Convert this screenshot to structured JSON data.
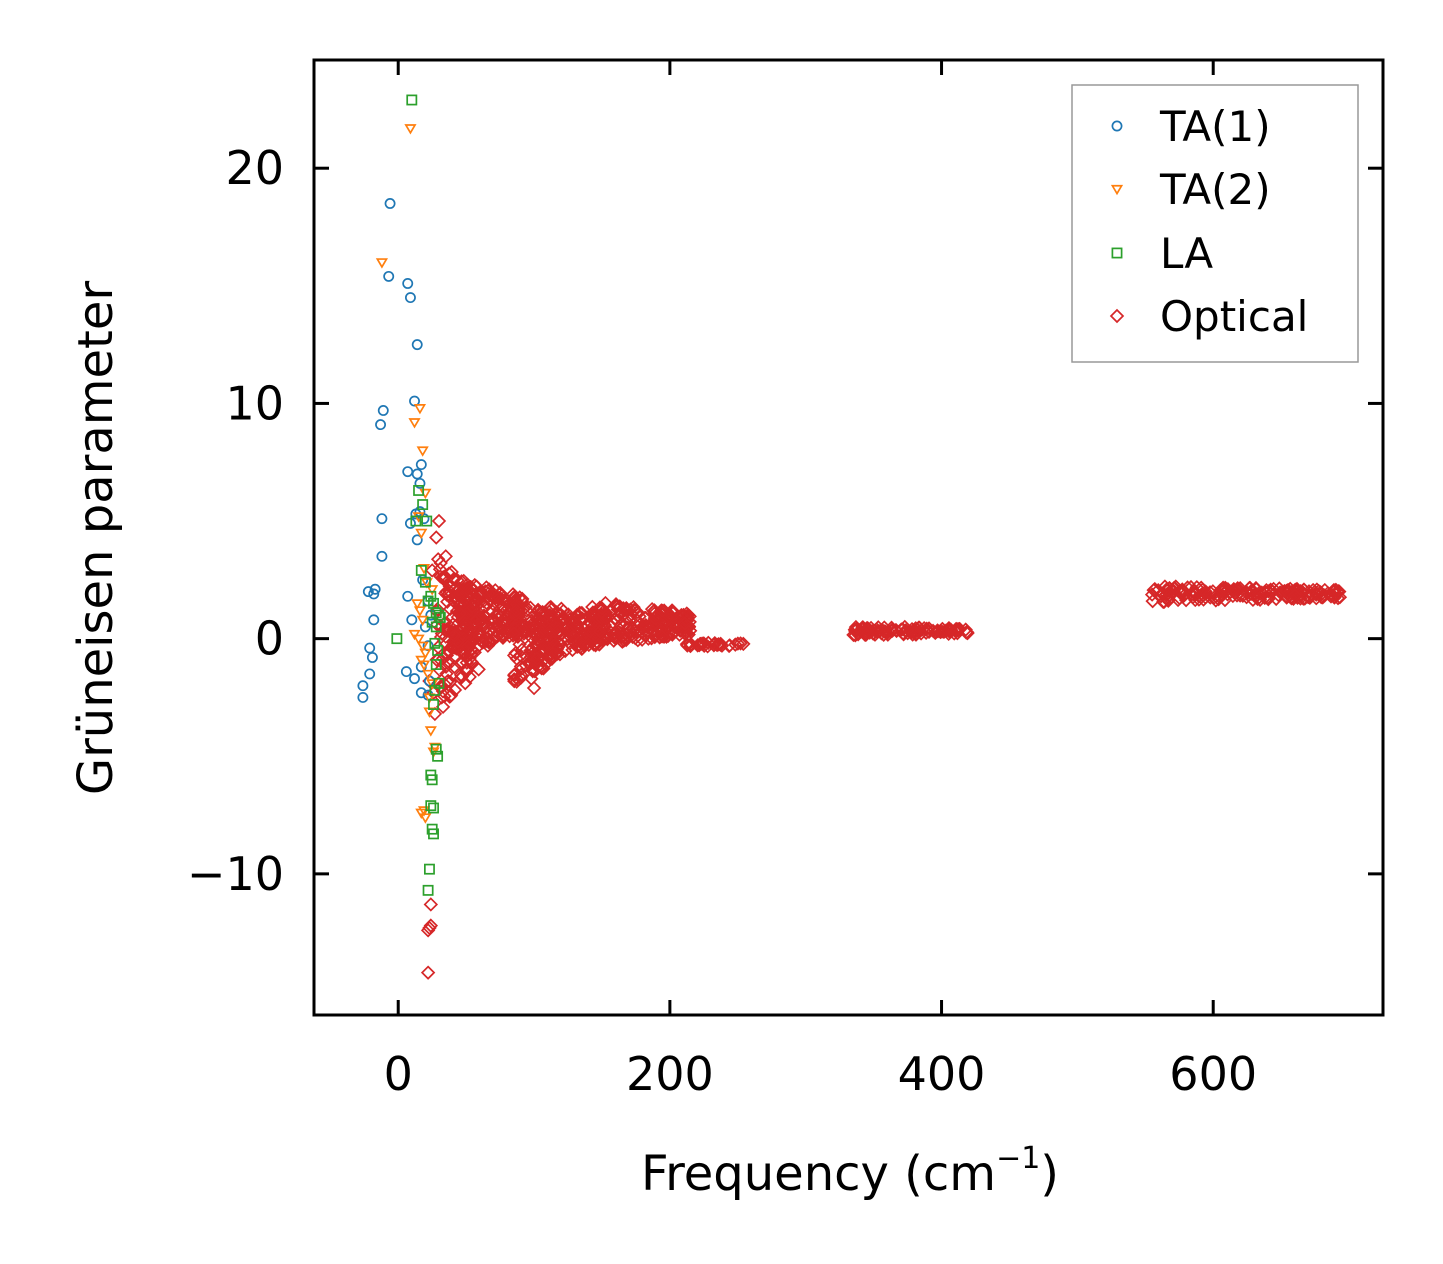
{
  "chart_data": {
    "type": "scatter",
    "title": "",
    "xlabel": "Frequency (cm",
    "xlabel_superscript": "−1",
    "xlabel_suffix": ")",
    "ylabel": "Grüneisen parameter",
    "xlim": [
      -62,
      725
    ],
    "ylim": [
      -16,
      24.6
    ],
    "xticks": [
      0,
      200,
      400,
      600
    ],
    "xtick_labels": [
      "0",
      "200",
      "400",
      "600"
    ],
    "yticks": [
      -10,
      0,
      10,
      20
    ],
    "ytick_labels": [
      "−10",
      "0",
      "10",
      "20"
    ],
    "grid": false,
    "legend_position": "top-right",
    "series": [
      {
        "name": "TA(1)",
        "marker": "circle",
        "color": "#1f77b4",
        "points": [
          [
            -6,
            18.5
          ],
          [
            -7,
            15.4
          ],
          [
            7,
            15.1
          ],
          [
            9,
            14.5
          ],
          [
            14,
            12.5
          ],
          [
            -11,
            9.7
          ],
          [
            -13,
            9.1
          ],
          [
            12,
            10.1
          ],
          [
            7,
            7.1
          ],
          [
            17,
            7.4
          ],
          [
            14,
            7
          ],
          [
            16,
            6.6
          ],
          [
            -12,
            5.1
          ],
          [
            9,
            4.9
          ],
          [
            13,
            5.3
          ],
          [
            16,
            5.4
          ],
          [
            19,
            5.1
          ],
          [
            14,
            4.2
          ],
          [
            -12,
            3.5
          ],
          [
            -17,
            2.1
          ],
          [
            -22,
            2
          ],
          [
            -18,
            1.9
          ],
          [
            7,
            1.8
          ],
          [
            18,
            2.5
          ],
          [
            -18,
            0.8
          ],
          [
            10,
            0.8
          ],
          [
            -21,
            -0.4
          ],
          [
            -26,
            -2
          ],
          [
            -21,
            -1.5
          ],
          [
            -19,
            -0.8
          ],
          [
            -26,
            -2.5
          ],
          [
            6,
            -1.4
          ],
          [
            12,
            -1.7
          ],
          [
            17,
            -2.3
          ],
          [
            22,
            -2.4
          ],
          [
            23,
            -1.8
          ],
          [
            17,
            -1.2
          ],
          [
            22,
            -0.3
          ],
          [
            20,
            0.5
          ],
          [
            24,
            1
          ],
          [
            22,
            1.6
          ]
        ]
      },
      {
        "name": "TA(2)",
        "marker": "triangle-down",
        "color": "#ff7f0e",
        "points": [
          [
            9,
            21.7
          ],
          [
            -12,
            16
          ],
          [
            16,
            9.8
          ],
          [
            12,
            9.2
          ],
          [
            18,
            8
          ],
          [
            20,
            6.2
          ],
          [
            15,
            5.2
          ],
          [
            17,
            4.5
          ],
          [
            19,
            3
          ],
          [
            21,
            2.4
          ],
          [
            14,
            1.5
          ],
          [
            16,
            1.2
          ],
          [
            18,
            0.8
          ],
          [
            12,
            0.2
          ],
          [
            15,
            0
          ],
          [
            18,
            -0.3
          ],
          [
            20,
            -0.6
          ],
          [
            17,
            -0.9
          ],
          [
            22,
            -1.5
          ],
          [
            19,
            -1.1
          ],
          [
            25,
            -1.9
          ],
          [
            23,
            -2.5
          ],
          [
            24,
            -3.9
          ],
          [
            27,
            -4.6
          ],
          [
            26,
            -4.8
          ],
          [
            17,
            -7.4
          ],
          [
            20,
            -7.6
          ],
          [
            19,
            -7.3
          ],
          [
            23,
            -3.1
          ],
          [
            25,
            2.1
          ]
        ]
      },
      {
        "name": "LA",
        "marker": "square",
        "color": "#2ca02c",
        "points": [
          [
            10,
            22.9
          ],
          [
            15,
            6.3
          ],
          [
            18,
            5.7
          ],
          [
            13,
            5
          ],
          [
            21,
            5
          ],
          [
            17,
            2.9
          ],
          [
            20,
            2.4
          ],
          [
            22,
            1.6
          ],
          [
            24,
            1.8
          ],
          [
            26,
            1.5
          ],
          [
            28,
            1.1
          ],
          [
            30,
            1
          ],
          [
            25,
            0.7
          ],
          [
            28,
            0.5
          ],
          [
            31,
            0.9
          ],
          [
            27,
            -0.2
          ],
          [
            29,
            -0.5
          ],
          [
            28,
            -1.1
          ],
          [
            30,
            -1.9
          ],
          [
            27,
            -2.2
          ],
          [
            26,
            -2.8
          ],
          [
            -1,
            0
          ],
          [
            28,
            -4.7
          ],
          [
            29,
            -5
          ],
          [
            24,
            -5.8
          ],
          [
            25,
            -6
          ],
          [
            26,
            -7.2
          ],
          [
            24,
            -7.1
          ],
          [
            25,
            -8.1
          ],
          [
            26,
            -8.3
          ],
          [
            23,
            -9.8
          ],
          [
            22,
            -10.7
          ]
        ]
      },
      {
        "name": "Optical",
        "marker": "diamond",
        "color": "#d62728",
        "clusters": [
          {
            "x_range": [
              28,
              60
            ],
            "y_range": [
              -3,
              3.5
            ],
            "n": 160
          },
          {
            "x_range": [
              40,
              90
            ],
            "y_range": [
              -0.6,
              2.6
            ],
            "n": 200
          },
          {
            "x_range": [
              85,
              115
            ],
            "y_range": [
              -2,
              2
            ],
            "n": 140
          },
          {
            "x_range": [
              110,
              150
            ],
            "y_range": [
              -0.8,
              1.5
            ],
            "n": 150
          },
          {
            "x_range": [
              140,
              215
            ],
            "y_range": [
              -0.3,
              1.6
            ],
            "n": 220
          },
          {
            "x_range": [
              212,
              255
            ],
            "y_range": [
              -0.35,
              -0.15
            ],
            "n": 30
          },
          {
            "x_range": [
              335,
              420
            ],
            "y_range": [
              0.1,
              0.55
            ],
            "n": 110
          },
          {
            "x_range": [
              555,
              695
            ],
            "y_range": [
              1.55,
              2.25
            ],
            "n": 180
          }
        ],
        "points": [
          [
            30,
            5
          ],
          [
            28,
            4.3
          ],
          [
            25,
            2.9
          ],
          [
            35,
            3.5
          ],
          [
            23,
            -1.8
          ],
          [
            26,
            -2.3
          ],
          [
            27,
            -3.2
          ],
          [
            24,
            -11.3
          ],
          [
            23,
            -12.3
          ],
          [
            24,
            -12.2
          ],
          [
            22,
            -12.4
          ],
          [
            22,
            -14.2
          ],
          [
            33,
            -2.9
          ],
          [
            32,
            -2.5
          ],
          [
            100,
            -2.1
          ],
          [
            98,
            -1.7
          ],
          [
            66,
            -0.3
          ]
        ]
      }
    ]
  }
}
